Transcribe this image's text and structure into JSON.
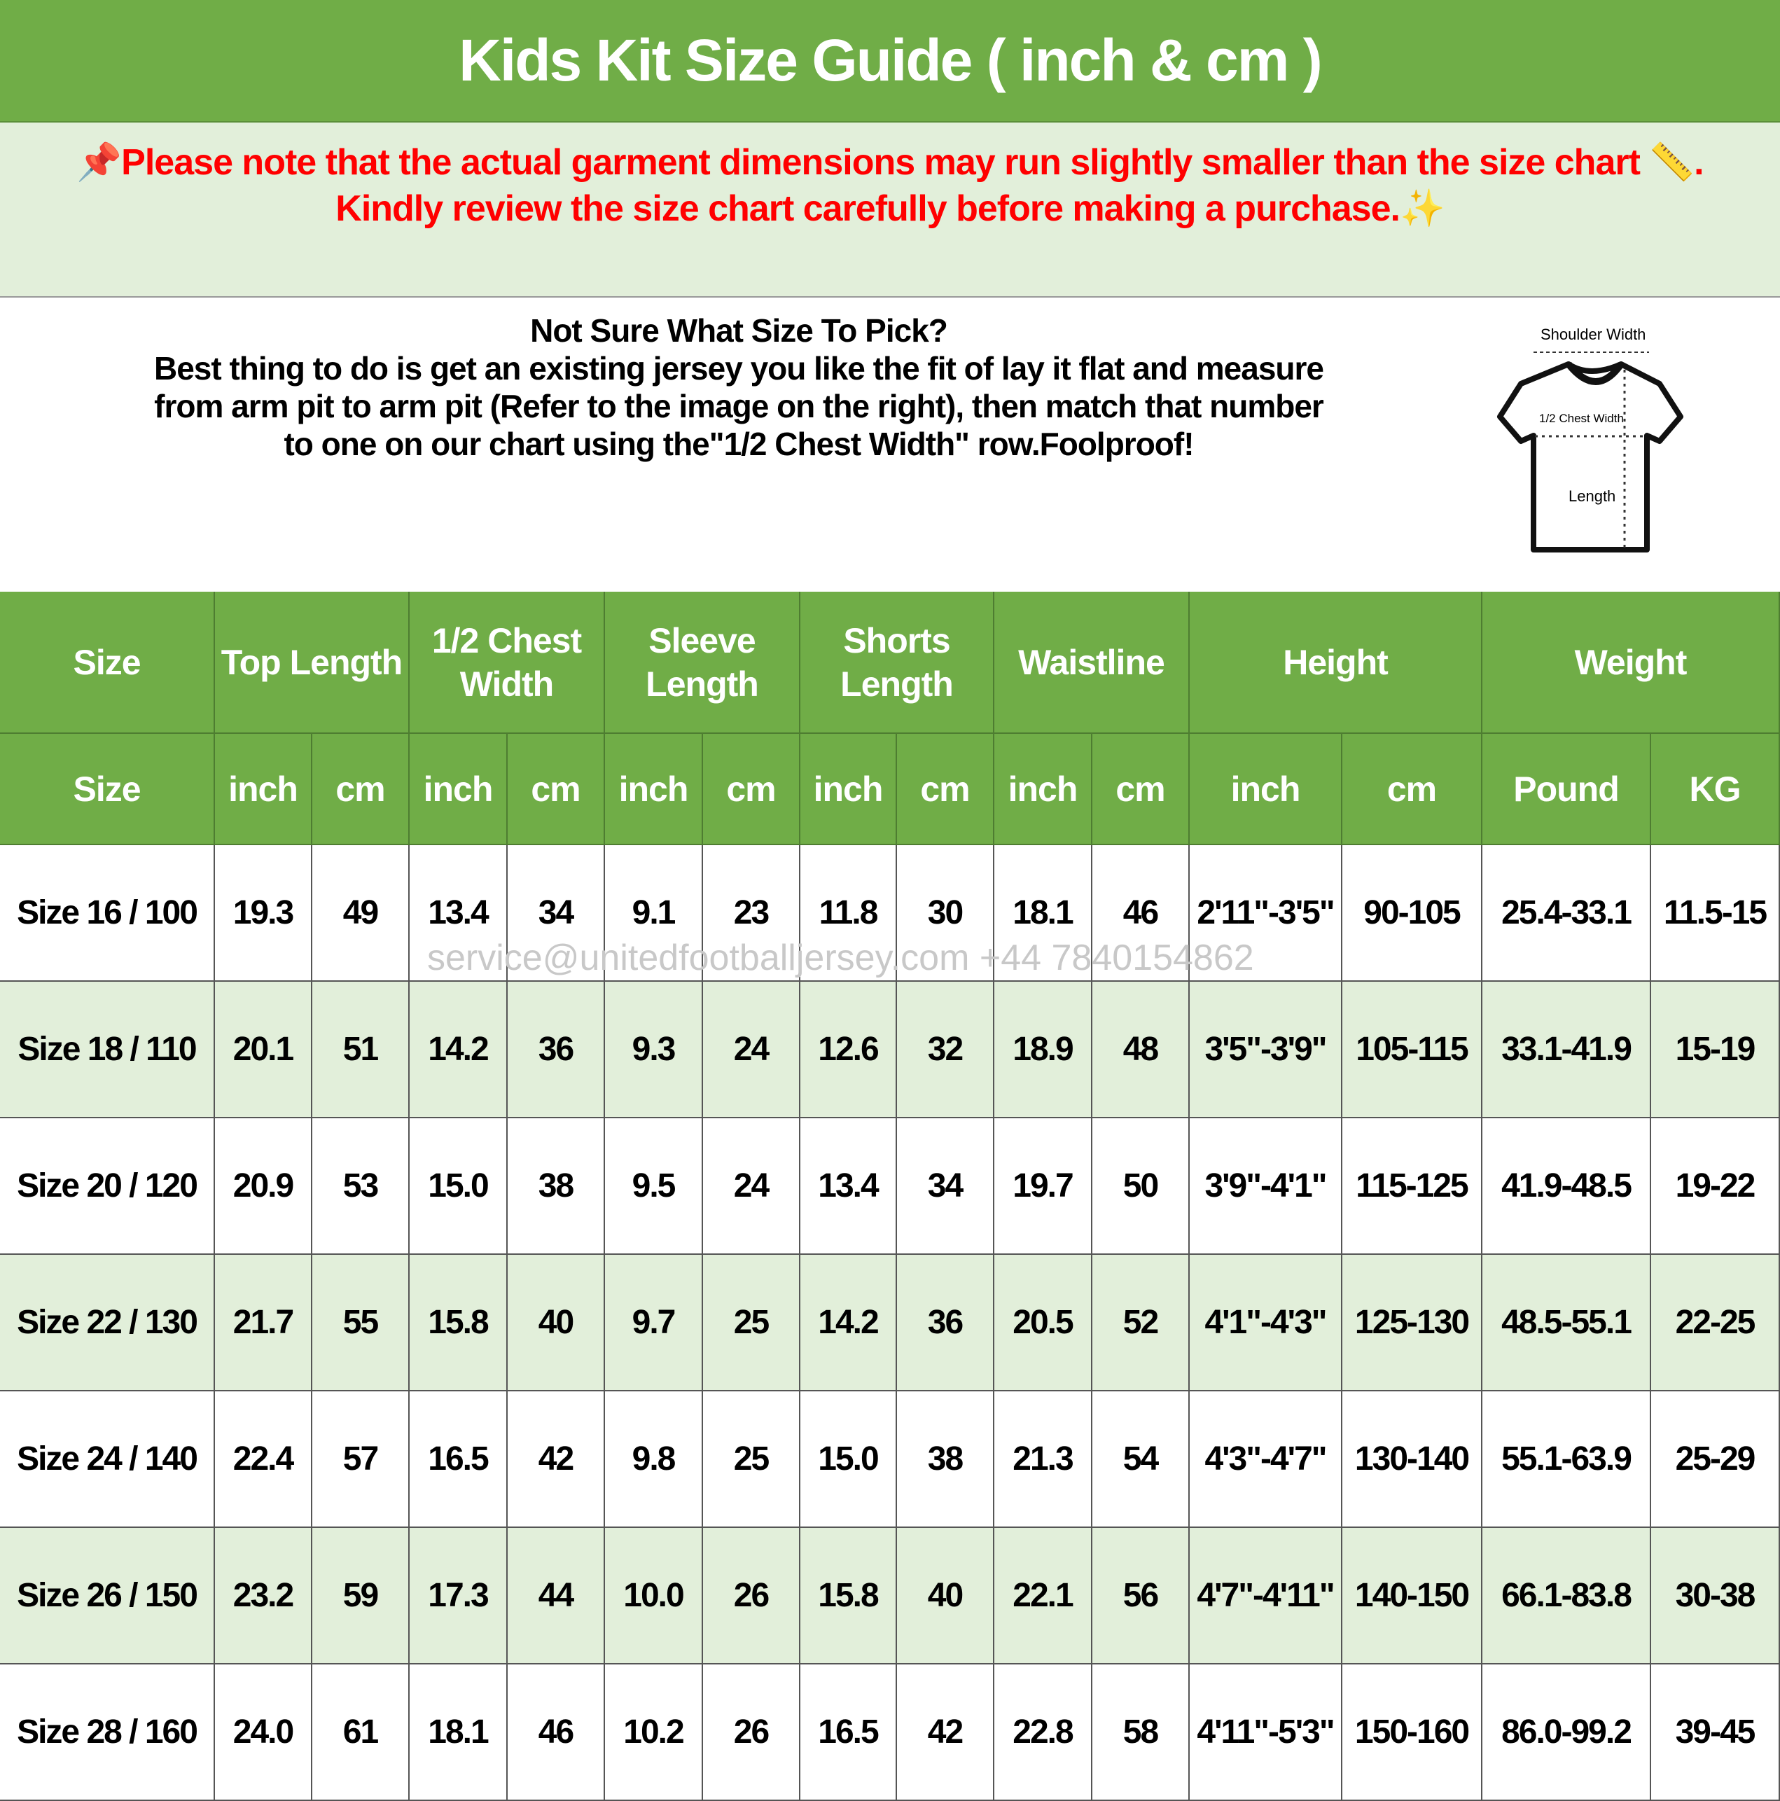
{
  "title": "Kids Kit Size Guide ( inch & cm )",
  "notice": {
    "line1": "Please note that the actual garment dimensions may run slightly smaller than the size chart",
    "line1_end": ".",
    "line2": "Kindly review the size chart carefully before making a purchase.",
    "icons": [
      "pushpin-icon",
      "ruler-icon",
      "sparkles-icon"
    ],
    "color": "#ff0000"
  },
  "info": {
    "heading": "Not Sure What Size To Pick?",
    "line1": "Best thing to do is get an existing jersey you like the fit of lay it flat and measure",
    "line2": "from arm pit to arm pit (Refer to the image on the right), then match that number",
    "line3": "to one on our chart using the\"1/2 Chest Width\" row.Foolproof!"
  },
  "diagram": {
    "shoulder": "Shoulder Width",
    "chest": "1/2 Chest Width",
    "length": "Length"
  },
  "colors": {
    "header_green": "#70ad47",
    "light_green": "#e2efda"
  },
  "watermark": "service@unitedfootballjersey.com +44 7840154862",
  "table": {
    "groups": [
      "Size",
      "Top Length",
      "1/2 Chest Width",
      "Sleeve Length",
      "Shorts Length",
      "Waistline",
      "Height",
      "Weight"
    ],
    "subheaders": [
      "Size",
      "inch",
      "cm",
      "inch",
      "cm",
      "inch",
      "cm",
      "inch",
      "cm",
      "inch",
      "cm",
      "inch",
      "cm",
      "Pound",
      "KG"
    ],
    "rows": [
      [
        "Size 16 / 100",
        "19.3",
        "49",
        "13.4",
        "34",
        "9.1",
        "23",
        "11.8",
        "30",
        "18.1",
        "46",
        "2'11\"-3'5\"",
        "90-105",
        "25.4-33.1",
        "11.5-15"
      ],
      [
        "Size 18 / 110",
        "20.1",
        "51",
        "14.2",
        "36",
        "9.3",
        "24",
        "12.6",
        "32",
        "18.9",
        "48",
        "3'5\"-3'9\"",
        "105-115",
        "33.1-41.9",
        "15-19"
      ],
      [
        "Size 20 / 120",
        "20.9",
        "53",
        "15.0",
        "38",
        "9.5",
        "24",
        "13.4",
        "34",
        "19.7",
        "50",
        "3'9\"-4'1\"",
        "115-125",
        "41.9-48.5",
        "19-22"
      ],
      [
        "Size 22 / 130",
        "21.7",
        "55",
        "15.8",
        "40",
        "9.7",
        "25",
        "14.2",
        "36",
        "20.5",
        "52",
        "4'1\"-4'3\"",
        "125-130",
        "48.5-55.1",
        "22-25"
      ],
      [
        "Size 24 / 140",
        "22.4",
        "57",
        "16.5",
        "42",
        "9.8",
        "25",
        "15.0",
        "38",
        "21.3",
        "54",
        "4'3\"-4'7\"",
        "130-140",
        "55.1-63.9",
        "25-29"
      ],
      [
        "Size 26 / 150",
        "23.2",
        "59",
        "17.3",
        "44",
        "10.0",
        "26",
        "15.8",
        "40",
        "22.1",
        "56",
        "4'7\"-4'11\"",
        "140-150",
        "66.1-83.8",
        "30-38"
      ],
      [
        "Size 28 / 160",
        "24.0",
        "61",
        "18.1",
        "46",
        "10.2",
        "26",
        "16.5",
        "42",
        "22.8",
        "58",
        "4'11\"-5'3\"",
        "150-160",
        "86.0-99.2",
        "39-45"
      ]
    ]
  }
}
